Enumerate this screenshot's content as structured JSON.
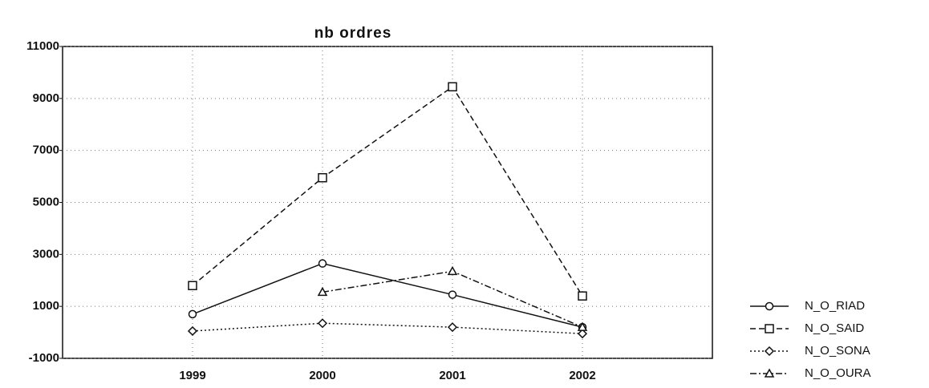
{
  "chart_data": {
    "type": "line",
    "title": "nb ordres",
    "categories": [
      "1999",
      "2000",
      "2001",
      "2002"
    ],
    "series": [
      {
        "name": "N_O_RIAD",
        "color": "#111111",
        "marker": "circle",
        "linestyle": "solid",
        "values": [
          700,
          2650,
          1450,
          200
        ]
      },
      {
        "name": "N_O_SAID",
        "color": "#111111",
        "marker": "square",
        "linestyle": "dashed",
        "values": [
          1800,
          5950,
          9450,
          1400
        ]
      },
      {
        "name": "N_O_SONA",
        "color": "#111111",
        "marker": "diamond",
        "linestyle": "dotted",
        "values": [
          50,
          350,
          200,
          -50
        ]
      },
      {
        "name": "N_O_OURA",
        "color": "#111111",
        "marker": "triangle",
        "linestyle": "dashdot",
        "values": [
          null,
          1550,
          2350,
          200
        ]
      }
    ],
    "ylim": [
      -1000,
      11000
    ],
    "yticks": [
      -1000,
      1000,
      3000,
      5000,
      7000,
      9000,
      11000
    ],
    "grid": true,
    "legend": "right"
  }
}
